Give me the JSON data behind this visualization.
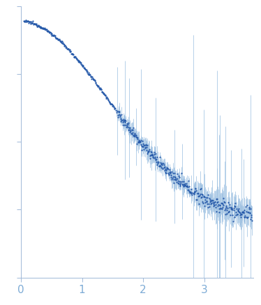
{
  "title": "",
  "xlabel": "",
  "ylabel": "",
  "xlim": [
    0,
    3.8
  ],
  "ylim": [
    -0.25,
    1.05
  ],
  "dot_color": "#2357a8",
  "error_color": "#99bde0",
  "background_color": "#ffffff",
  "axis_color": "#a0b8d8",
  "tick_color": "#a0b8d8",
  "label_color": "#7facd6",
  "tick_label_fontsize": 11,
  "xticks": [
    0,
    1,
    2,
    3
  ],
  "figsize": [
    3.74,
    4.37
  ],
  "dpi": 100,
  "seed": 12345
}
